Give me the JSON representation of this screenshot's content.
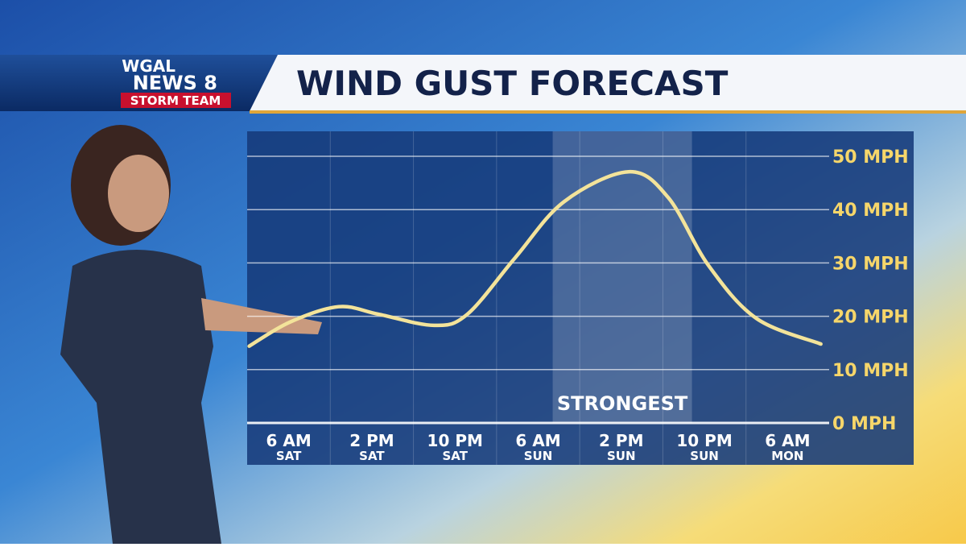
{
  "header": {
    "logo_top": "WGAL",
    "logo_main": "NEWS 8",
    "logo_bottom": "STORM TEAM"
  },
  "chart_data": {
    "type": "line",
    "title": "WIND GUST FORECAST",
    "x": [
      -3.8,
      0.1,
      4.8,
      8.6,
      14,
      17.2,
      21.8,
      26.5,
      32.7,
      36.5,
      40.4,
      45,
      51.2
    ],
    "series": [
      {
        "name": "Wind gust",
        "color": "#f3e39a",
        "values": [
          14.4,
          18.9,
          21.8,
          20.4,
          18.3,
          20.4,
          31,
          41.5,
          47.1,
          42.3,
          29.5,
          19.6,
          14.8
        ]
      }
    ],
    "xlim": [
      -4,
      52
    ],
    "xticks": [
      {
        "value": 0,
        "label": "6 AM",
        "day": "SAT"
      },
      {
        "value": 8,
        "label": "2 PM",
        "day": "SAT"
      },
      {
        "value": 16,
        "label": "10 PM",
        "day": "SAT"
      },
      {
        "value": 24,
        "label": "6 AM",
        "day": "SUN"
      },
      {
        "value": 32,
        "label": "2 PM",
        "day": "SUN"
      },
      {
        "value": 40,
        "label": "10 PM",
        "day": "SUN"
      },
      {
        "value": 48,
        "label": "6 AM",
        "day": "MON"
      }
    ],
    "ylim": [
      0,
      50
    ],
    "yticks": [
      {
        "value": 0,
        "label": "0 MPH"
      },
      {
        "value": 10,
        "label": "10 MPH"
      },
      {
        "value": 20,
        "label": "20 MPH"
      },
      {
        "value": 30,
        "label": "30 MPH"
      },
      {
        "value": 40,
        "label": "40 MPH"
      },
      {
        "value": 50,
        "label": "50 MPH"
      }
    ],
    "grid": true,
    "highlight": {
      "label": "STRONGEST",
      "from": 25.4,
      "to": 38.8
    }
  }
}
